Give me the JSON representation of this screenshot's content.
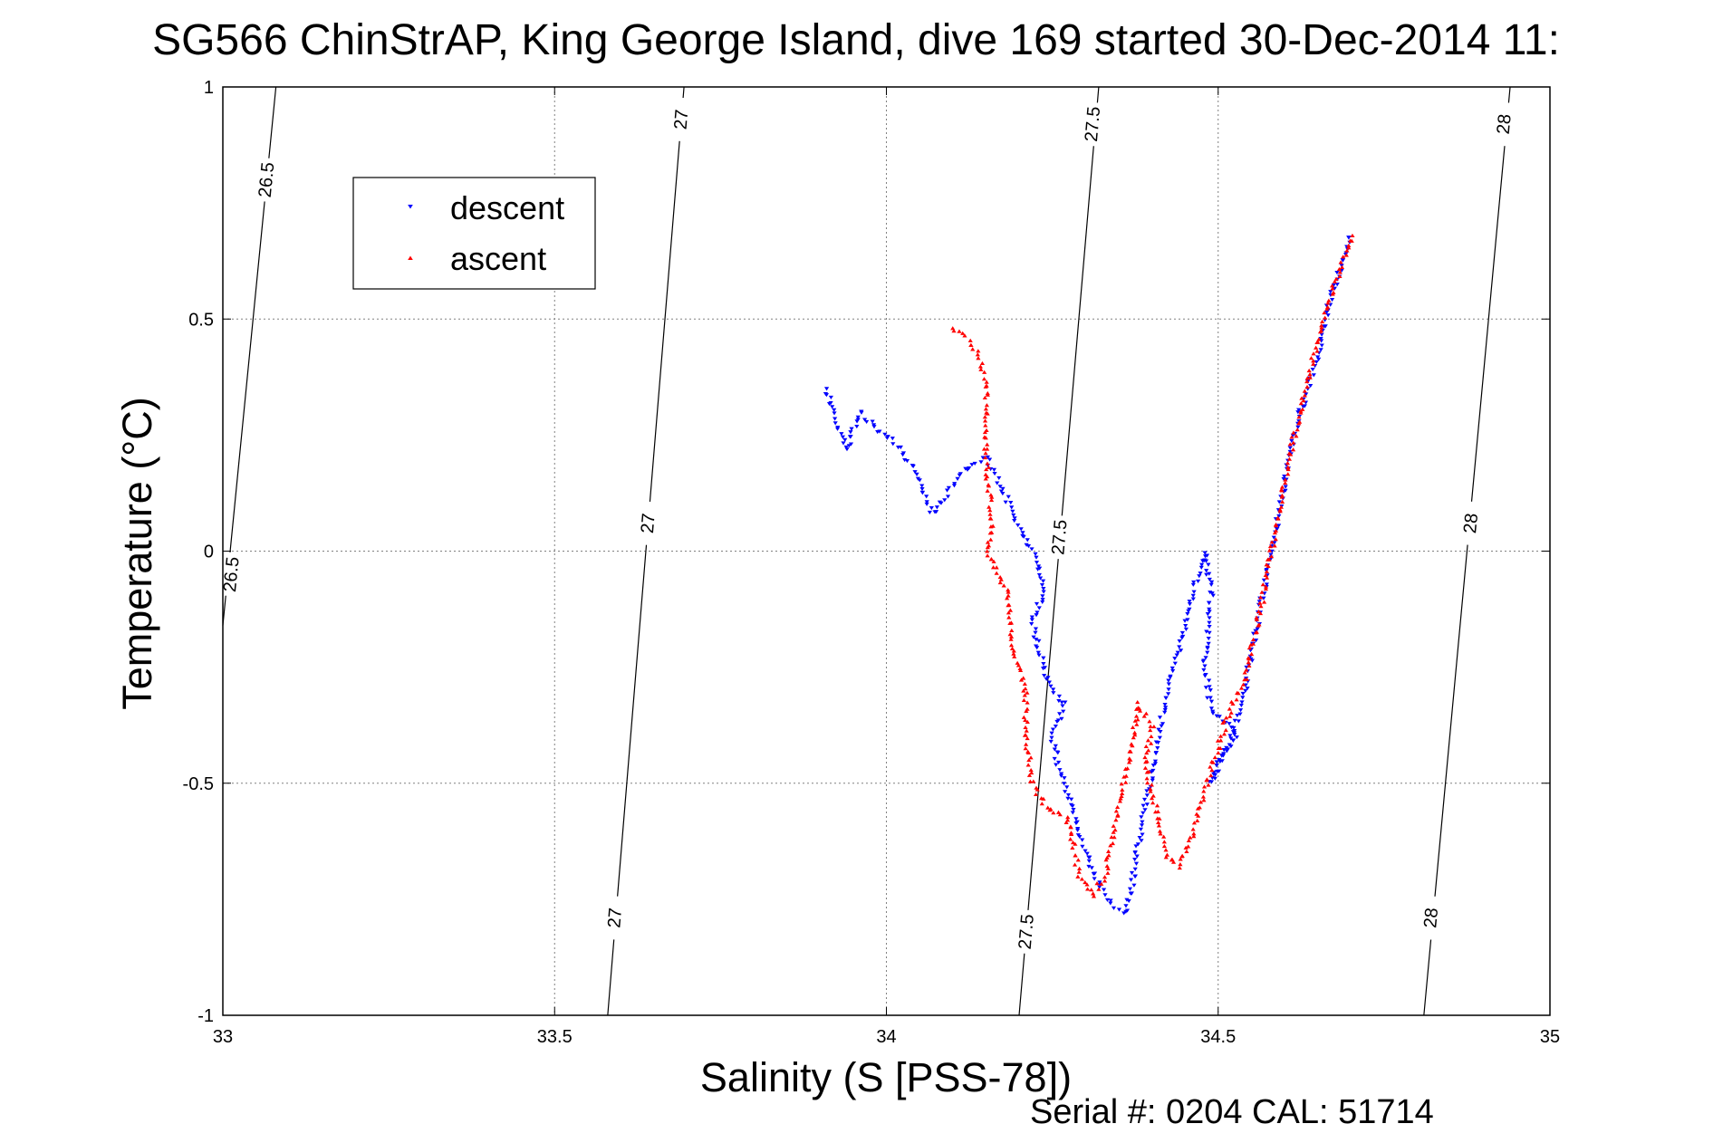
{
  "chart_data": {
    "type": "scatter",
    "title": "SG566 ChinStrAP, King George Island, dive 169 started 30-Dec-2014 11:",
    "xlabel": "Salinity (S [PSS-78])",
    "ylabel": "Temperature (°C)",
    "xlim": [
      33,
      35
    ],
    "ylim": [
      -1,
      1
    ],
    "xticks": [
      33,
      33.5,
      34,
      34.5,
      35
    ],
    "xtick_labels": [
      "33",
      "33.5",
      "34",
      "34.5",
      "35"
    ],
    "yticks": [
      -1,
      -0.5,
      0,
      0.5,
      1
    ],
    "ytick_labels": [
      "-1",
      "-0.5",
      "0",
      "0.5",
      "1"
    ],
    "grid": true,
    "legend_position": "top-left",
    "contours": [
      {
        "level": "26.5",
        "path": [
          [
            33.08,
            1.0
          ],
          [
            33.0,
            -0.16
          ]
        ],
        "labels": [
          {
            "text": "26.5",
            "x": 33.065,
            "y": 0.8
          },
          {
            "text": "26.5",
            "x": 33.012,
            "y": -0.05
          }
        ]
      },
      {
        "level": "27",
        "path": [
          [
            33.695,
            1.0
          ],
          [
            33.58,
            -1.0
          ]
        ],
        "labels": [
          {
            "text": "27",
            "x": 33.69,
            "y": 0.93
          },
          {
            "text": "27",
            "x": 33.64,
            "y": 0.06
          },
          {
            "text": "27",
            "x": 33.59,
            "y": -0.79
          }
        ]
      },
      {
        "level": "27.5",
        "path": [
          [
            34.32,
            1.0
          ],
          [
            34.2,
            -1.0
          ]
        ],
        "labels": [
          {
            "text": "27.5",
            "x": 34.31,
            "y": 0.92
          },
          {
            "text": "27.5",
            "x": 34.26,
            "y": 0.03
          },
          {
            "text": "27.5",
            "x": 34.21,
            "y": -0.82
          }
        ]
      },
      {
        "level": "28",
        "path": [
          [
            34.94,
            1.0
          ],
          [
            34.81,
            -1.0
          ]
        ],
        "labels": [
          {
            "text": "28",
            "x": 34.93,
            "y": 0.92
          },
          {
            "text": "28",
            "x": 34.88,
            "y": 0.06
          },
          {
            "text": "28",
            "x": 34.82,
            "y": -0.79
          }
        ]
      }
    ],
    "series": [
      {
        "name": "descent",
        "color": "#0000ff",
        "marker": "down-triangle",
        "path": [
          [
            34.7,
            0.68
          ],
          [
            34.67,
            0.55
          ],
          [
            34.65,
            0.42
          ],
          [
            34.62,
            0.28
          ],
          [
            34.6,
            0.15
          ],
          [
            34.58,
            0.0
          ],
          [
            34.56,
            -0.15
          ],
          [
            34.54,
            -0.3
          ],
          [
            34.52,
            -0.4
          ],
          [
            34.5,
            -0.45
          ],
          [
            34.49,
            -0.5
          ],
          [
            34.51,
            -0.43
          ],
          [
            34.53,
            -0.4
          ],
          [
            34.51,
            -0.37
          ],
          [
            34.49,
            -0.35
          ],
          [
            34.48,
            -0.25
          ],
          [
            34.49,
            -0.1
          ],
          [
            34.48,
            0.0
          ],
          [
            34.46,
            -0.1
          ],
          [
            34.44,
            -0.22
          ],
          [
            34.42,
            -0.32
          ],
          [
            34.41,
            -0.4
          ],
          [
            34.4,
            -0.48
          ],
          [
            34.39,
            -0.55
          ],
          [
            34.38,
            -0.63
          ],
          [
            34.37,
            -0.72
          ],
          [
            34.36,
            -0.78
          ],
          [
            34.34,
            -0.76
          ],
          [
            34.32,
            -0.72
          ],
          [
            34.3,
            -0.65
          ],
          [
            34.28,
            -0.55
          ],
          [
            34.26,
            -0.47
          ],
          [
            34.25,
            -0.4
          ],
          [
            34.27,
            -0.33
          ],
          [
            34.25,
            -0.3
          ],
          [
            34.23,
            -0.22
          ],
          [
            34.22,
            -0.15
          ],
          [
            34.24,
            -0.08
          ],
          [
            34.22,
            0.0
          ],
          [
            34.2,
            0.05
          ],
          [
            34.17,
            0.15
          ],
          [
            34.15,
            0.2
          ],
          [
            34.12,
            0.18
          ],
          [
            34.09,
            0.12
          ],
          [
            34.07,
            0.08
          ],
          [
            34.04,
            0.18
          ],
          [
            34.01,
            0.24
          ],
          [
            33.98,
            0.27
          ],
          [
            33.96,
            0.3
          ],
          [
            33.94,
            0.22
          ],
          [
            33.92,
            0.3
          ],
          [
            33.91,
            0.35
          ]
        ]
      },
      {
        "name": "ascent",
        "color": "#ff0000",
        "marker": "up-triangle",
        "path": [
          [
            34.7,
            0.68
          ],
          [
            34.67,
            0.55
          ],
          [
            34.64,
            0.4
          ],
          [
            34.62,
            0.28
          ],
          [
            34.6,
            0.15
          ],
          [
            34.58,
            0.0
          ],
          [
            34.56,
            -0.15
          ],
          [
            34.54,
            -0.28
          ],
          [
            34.52,
            -0.33
          ],
          [
            34.5,
            -0.42
          ],
          [
            34.48,
            -0.52
          ],
          [
            34.46,
            -0.62
          ],
          [
            34.44,
            -0.68
          ],
          [
            34.42,
            -0.65
          ],
          [
            34.41,
            -0.58
          ],
          [
            34.4,
            -0.52
          ],
          [
            34.39,
            -0.45
          ],
          [
            34.4,
            -0.38
          ],
          [
            34.38,
            -0.33
          ],
          [
            34.37,
            -0.42
          ],
          [
            34.36,
            -0.48
          ],
          [
            34.35,
            -0.55
          ],
          [
            34.34,
            -0.62
          ],
          [
            34.33,
            -0.7
          ],
          [
            34.31,
            -0.74
          ],
          [
            34.29,
            -0.7
          ],
          [
            34.28,
            -0.62
          ],
          [
            34.27,
            -0.57
          ],
          [
            34.24,
            -0.55
          ],
          [
            34.22,
            -0.5
          ],
          [
            34.21,
            -0.4
          ],
          [
            34.21,
            -0.3
          ],
          [
            34.19,
            -0.2
          ],
          [
            34.18,
            -0.08
          ],
          [
            34.15,
            0.0
          ],
          [
            34.16,
            0.05
          ],
          [
            34.15,
            0.2
          ],
          [
            34.15,
            0.35
          ],
          [
            34.14,
            0.42
          ],
          [
            34.12,
            0.46
          ],
          [
            34.1,
            0.48
          ]
        ]
      }
    ],
    "footer": "Serial #: 0204  CAL: 51714"
  }
}
